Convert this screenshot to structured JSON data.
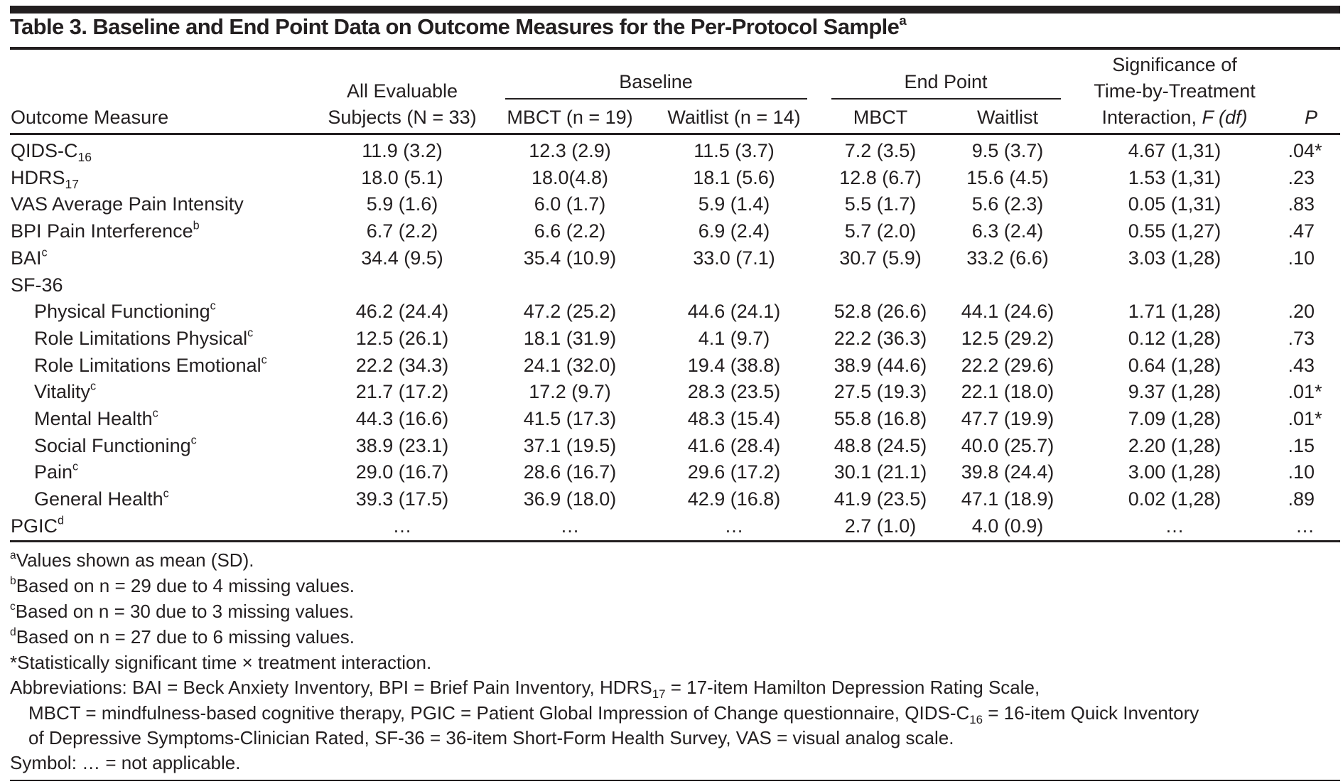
{
  "title": {
    "text": "Table 3. Baseline and End Point Data on Outcome Measures for the Per-Protocol Sample",
    "sup": "a"
  },
  "header": {
    "outcome": "Outcome Measure",
    "all_line1": "All Evaluable",
    "all_line2": "Subjects (N = 33)",
    "baseline": "Baseline",
    "endpoint": "End Point",
    "b_mbct": "MBCT (n = 19)",
    "b_wait": "Waitlist (n = 14)",
    "e_mbct": "MBCT",
    "e_wait": "Waitlist",
    "sig_line1": "Significance of",
    "sig_line2": "Time-by-Treatment",
    "sig_line3a": "Interaction, ",
    "sig_line3b": "F (df)",
    "p": "P"
  },
  "rows": [
    {
      "label": "QIDS-C",
      "sub": "16",
      "values": [
        "11.9 (3.2)",
        "12.3 (2.9)",
        "11.5 (3.7)",
        "7.2 (3.5)",
        "9.5 (3.7)",
        "4.67 (1,31)"
      ],
      "p": ".04",
      "star": "*"
    },
    {
      "label": "HDRS",
      "sub": "17",
      "values": [
        "18.0 (5.1)",
        "18.0(4.8)",
        "18.1 (5.6)",
        "12.8 (6.7)",
        "15.6 (4.5)",
        "1.53 (1,31)"
      ],
      "p": ".23"
    },
    {
      "label": "VAS Average Pain Intensity",
      "values": [
        "5.9 (1.6)",
        "6.0 (1.7)",
        "5.9 (1.4)",
        "5.5 (1.7)",
        "5.6 (2.3)",
        "0.05 (1,31)"
      ],
      "p": ".83"
    },
    {
      "label": "BPI Pain Interference",
      "sup": "b",
      "values": [
        "6.7 (2.2)",
        "6.6 (2.2)",
        "6.9 (2.4)",
        "5.7 (2.0)",
        "6.3 (2.4)",
        "0.55 (1,27)"
      ],
      "p": ".47"
    },
    {
      "label": "BAI",
      "sup": "c",
      "values": [
        "34.4 (9.5)",
        "35.4 (10.9)",
        "33.0 (7.1)",
        "30.7 (5.9)",
        "33.2 (6.6)",
        "3.03 (1,28)"
      ],
      "p": ".10"
    },
    {
      "label": "SF-36",
      "values": [
        "",
        "",
        "",
        "",
        "",
        ""
      ],
      "p": ""
    },
    {
      "label": "Physical Functioning",
      "sup": "c",
      "indent": true,
      "values": [
        "46.2 (24.4)",
        "47.2 (25.2)",
        "44.6 (24.1)",
        "52.8 (26.6)",
        "44.1 (24.6)",
        "1.71 (1,28)"
      ],
      "p": ".20"
    },
    {
      "label": "Role Limitations Physical",
      "sup": "c",
      "indent": true,
      "values": [
        "12.5 (26.1)",
        "18.1 (31.9)",
        "4.1 (9.7)",
        "22.2 (36.3)",
        "12.5 (29.2)",
        "0.12 (1,28)"
      ],
      "p": ".73"
    },
    {
      "label": "Role Limitations Emotional",
      "sup": "c",
      "indent": true,
      "values": [
        "22.2 (34.3)",
        "24.1 (32.0)",
        "19.4 (38.8)",
        "38.9 (44.6)",
        "22.2 (29.6)",
        "0.64 (1,28)"
      ],
      "p": ".43"
    },
    {
      "label": "Vitality",
      "sup": "c",
      "indent": true,
      "values": [
        "21.7 (17.2)",
        "17.2 (9.7)",
        "28.3 (23.5)",
        "27.5 (19.3)",
        "22.1 (18.0)",
        "9.37 (1,28)"
      ],
      "p": ".01",
      "star": "*"
    },
    {
      "label": "Mental Health",
      "sup": "c",
      "indent": true,
      "values": [
        "44.3 (16.6)",
        "41.5 (17.3)",
        "48.3 (15.4)",
        "55.8 (16.8)",
        "47.7 (19.9)",
        "7.09 (1,28)"
      ],
      "p": ".01",
      "star": "*"
    },
    {
      "label": "Social Functioning",
      "sup": "c",
      "indent": true,
      "values": [
        "38.9 (23.1)",
        "37.1 (19.5)",
        "41.6 (28.4)",
        "48.8 (24.5)",
        "40.0 (25.7)",
        "2.20 (1,28)"
      ],
      "p": ".15"
    },
    {
      "label": "Pain",
      "sup": "c",
      "indent": true,
      "values": [
        "29.0 (16.7)",
        "28.6 (16.7)",
        "29.6 (17.2)",
        "30.1 (21.1)",
        "39.8 (24.4)",
        "3.00 (1,28)"
      ],
      "p": ".10"
    },
    {
      "label": "General Health",
      "sup": "c",
      "indent": true,
      "values": [
        "39.3 (17.5)",
        "36.9 (18.0)",
        "42.9 (16.8)",
        "41.9 (23.5)",
        "47.1 (18.9)",
        "0.02 (1,28)"
      ],
      "p": ".89"
    },
    {
      "label": "PGIC",
      "sup": "d",
      "values": [
        "…",
        "…",
        "…",
        "2.7 (1.0)",
        "4.0 (0.9)",
        "…"
      ],
      "p": "…"
    }
  ],
  "footnotes": {
    "a": {
      "mark": "a",
      "text": "Values shown as mean (SD)."
    },
    "b": {
      "mark": "b",
      "text": "Based on n = 29 due to 4 missing values."
    },
    "c": {
      "mark": "c",
      "text": "Based on n = 30 due to 3 missing values."
    },
    "d": {
      "mark": "d",
      "text": "Based on n = 27 due to 6 missing values."
    },
    "star": "*Statistically significant time × treatment interaction.",
    "abbr1a": "Abbreviations: BAI = Beck Anxiety Inventory, BPI = Brief Pain Inventory, HDRS",
    "abbr1sub": "17",
    "abbr1b": " = 17-item Hamilton Depression Rating Scale,",
    "abbr2a": "MBCT = mindfulness-based cognitive therapy, PGIC = Patient Global Impression of Change questionnaire, QIDS-C",
    "abbr2sub": "16",
    "abbr2b": " = 16-item Quick Inventory",
    "abbr3": "of Depressive Symptoms-Clinician Rated, SF-36 = 36-item Short-Form Health Survey, VAS = visual analog scale.",
    "symbol": "Symbol: … = not applicable."
  }
}
